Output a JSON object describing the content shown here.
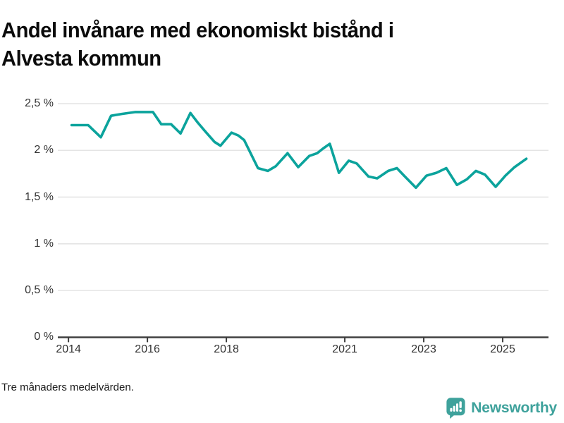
{
  "title": {
    "line1": "Andel invånare med ekonomiskt bistånd i",
    "line2": "Alvesta kommun",
    "full": "Andel invånare med ekonomiskt bistånd i Alvesta kommun"
  },
  "footnote": "Tre månaders medelvärden.",
  "branding": {
    "name": "Newsworthy",
    "icon": "newsworthy-speech-bubble-barchart-icon",
    "color": "#3fa29c"
  },
  "chart_data": {
    "type": "line",
    "title": "Andel invånare med ekonomiskt bistånd i Alvesta kommun",
    "xlabel": "",
    "ylabel": "",
    "unit": "%",
    "decimal_separator": ",",
    "line_color": "#0ba39c",
    "grid_color": "#e4e4e4",
    "axis_color": "#3c3c3c",
    "grid": true,
    "legend_position": "none",
    "x_range": [
      2013.73,
      2026.16
    ],
    "y_range": [
      0,
      2.5
    ],
    "y_ticks": [
      {
        "value": 0,
        "label": "0 %"
      },
      {
        "value": 0.5,
        "label": "0,5 %"
      },
      {
        "value": 1,
        "label": "1 %"
      },
      {
        "value": 1.5,
        "label": "1,5 %"
      },
      {
        "value": 2,
        "label": "2 %"
      },
      {
        "value": 2.5,
        "label": "2,5 %"
      }
    ],
    "x_ticks": [
      {
        "value": 2014,
        "label": "2014"
      },
      {
        "value": 2016,
        "label": "2016"
      },
      {
        "value": 2018,
        "label": "2018"
      },
      {
        "value": 2021,
        "label": "2021"
      },
      {
        "value": 2023,
        "label": "2023"
      },
      {
        "value": 2025,
        "label": "2025"
      }
    ],
    "series": [
      {
        "name": "Alvesta kommun",
        "points": [
          [
            2014.08,
            2.27
          ],
          [
            2014.5,
            2.27
          ],
          [
            2014.82,
            2.14
          ],
          [
            2015.08,
            2.37
          ],
          [
            2015.35,
            2.39
          ],
          [
            2015.7,
            2.41
          ],
          [
            2016.14,
            2.41
          ],
          [
            2016.35,
            2.28
          ],
          [
            2016.6,
            2.28
          ],
          [
            2016.84,
            2.18
          ],
          [
            2017.09,
            2.4
          ],
          [
            2017.27,
            2.3
          ],
          [
            2017.45,
            2.21
          ],
          [
            2017.7,
            2.09
          ],
          [
            2017.85,
            2.05
          ],
          [
            2018.13,
            2.19
          ],
          [
            2018.3,
            2.16
          ],
          [
            2018.45,
            2.11
          ],
          [
            2018.8,
            1.81
          ],
          [
            2019.05,
            1.78
          ],
          [
            2019.25,
            1.83
          ],
          [
            2019.55,
            1.97
          ],
          [
            2019.82,
            1.82
          ],
          [
            2020.1,
            1.94
          ],
          [
            2020.3,
            1.97
          ],
          [
            2020.45,
            2.02
          ],
          [
            2020.62,
            2.07
          ],
          [
            2020.85,
            1.76
          ],
          [
            2021.1,
            1.89
          ],
          [
            2021.3,
            1.86
          ],
          [
            2021.6,
            1.72
          ],
          [
            2021.82,
            1.7
          ],
          [
            2022.1,
            1.78
          ],
          [
            2022.32,
            1.81
          ],
          [
            2022.5,
            1.73
          ],
          [
            2022.8,
            1.6
          ],
          [
            2023.07,
            1.73
          ],
          [
            2023.32,
            1.76
          ],
          [
            2023.57,
            1.81
          ],
          [
            2023.84,
            1.63
          ],
          [
            2024.09,
            1.69
          ],
          [
            2024.32,
            1.78
          ],
          [
            2024.55,
            1.74
          ],
          [
            2024.82,
            1.61
          ],
          [
            2025.07,
            1.73
          ],
          [
            2025.3,
            1.82
          ],
          [
            2025.6,
            1.91
          ]
        ]
      }
    ]
  }
}
